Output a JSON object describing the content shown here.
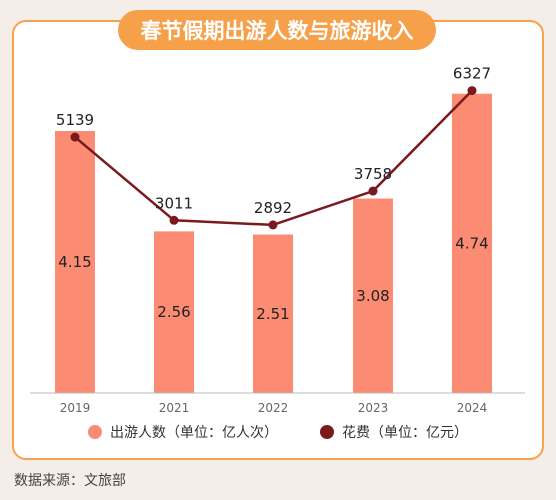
{
  "title": "春节假期出游人数与旅游收入",
  "source": "数据来源：文旅部",
  "colors": {
    "bar": "#fb8b72",
    "line": "#7a1a1f",
    "title_bg": "#f7a04a",
    "border": "#f6a24e"
  },
  "chart_data": {
    "type": "bar",
    "categories": [
      "2019",
      "2021",
      "2022",
      "2023",
      "2024"
    ],
    "series": [
      {
        "name": "出游人数（单位：亿人次）",
        "type": "bar",
        "values": [
          4.15,
          2.56,
          2.51,
          3.08,
          4.74
        ]
      },
      {
        "name": "花费（单位：亿元）",
        "type": "line",
        "values": [
          5139,
          3011,
          2892,
          3758,
          6327
        ]
      }
    ],
    "title": "春节假期出游人数与旅游收入",
    "grid": false,
    "legend_position": "bottom"
  }
}
